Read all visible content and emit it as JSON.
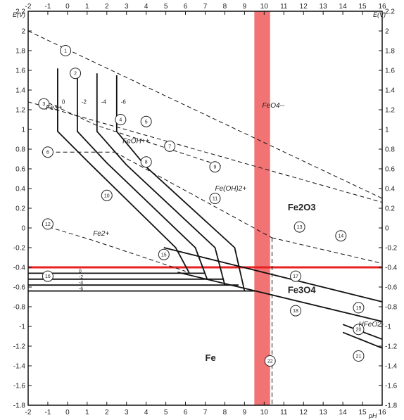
{
  "chart_data": {
    "type": "line",
    "title": "",
    "xlabel": "pH",
    "ylabel": "E (V)",
    "xlim": [
      -2,
      16
    ],
    "ylim": [
      -1.8,
      2.2
    ],
    "x_ticks": [
      "-2",
      "-1",
      "0",
      "1",
      "2",
      "3",
      "4",
      "5",
      "6",
      "7",
      "8",
      "9",
      "10",
      "11",
      "12",
      "13",
      "14",
      "15",
      "16"
    ],
    "y_ticks_left": [
      "-1.8",
      "-1.6",
      "-1.4",
      "-1.2",
      "-1",
      "-0.8",
      "-0.6",
      "-0.4",
      "-0.2",
      "0",
      "0.2",
      "0.4",
      "0.6",
      "0.8",
      "1",
      "1.2",
      "1.4",
      "1.6",
      "1.8",
      "2",
      "2.2"
    ],
    "y_ticks_right": [
      "-1.8",
      "-1.6",
      "-1.4",
      "-1.2",
      "-1",
      "-0.8",
      "-0.6",
      "-0.4",
      "-0.2",
      "0",
      "0.2",
      "0.4",
      "0.6",
      "0.8",
      "1",
      "1.2",
      "1.4",
      "1.6",
      "1.8",
      "2",
      "2.2"
    ],
    "axis_unit_labels": {
      "y_left": "E(V)",
      "y_right": "E(V)",
      "x_bottom": "pH"
    },
    "grid": false,
    "highlights": [
      {
        "orientation": "vertical",
        "x_range": [
          9.5,
          10.3
        ],
        "color": "#f05a5a"
      },
      {
        "orientation": "horizontal",
        "y": -0.4,
        "color": "#e82020"
      }
    ],
    "region_labels": [
      {
        "text": "Fe2O3",
        "x": 11.2,
        "y": 0.18
      },
      {
        "text": "Fe3O4",
        "x": 11.2,
        "y": -0.66
      },
      {
        "text": "Fe",
        "x": 7.0,
        "y": -1.35
      }
    ],
    "species_labels": [
      {
        "text": "Fe3+",
        "x": -1.1,
        "y": 1.2
      },
      {
        "text": "FeOH++",
        "x": 2.8,
        "y": 0.86
      },
      {
        "text": "Fe(OH)2+",
        "x": 7.5,
        "y": 0.38
      },
      {
        "text": "Fe2+",
        "x": 1.3,
        "y": -0.08
      },
      {
        "text": "FeO4--",
        "x": 9.9,
        "y": 1.22
      },
      {
        "text": "HFeO2-",
        "x": 14.8,
        "y": -1.0
      }
    ],
    "concentration_labels": [
      "0",
      "-2",
      "-4",
      "-6"
    ],
    "series": [
      {
        "style": "dashed",
        "x": [
          -2,
          16
        ],
        "y": [
          2.0,
          0.3
        ]
      },
      {
        "style": "dashed",
        "x": [
          -2,
          16
        ],
        "y": [
          1.28,
          0.26
        ]
      },
      {
        "style": "dashed",
        "x": [
          -1.3,
          2.4
        ],
        "y": [
          0.77,
          0.77
        ]
      },
      {
        "style": "dashed",
        "x": [
          2.4,
          10.4
        ],
        "y": [
          0.77,
          -0.1
        ]
      },
      {
        "style": "dashed",
        "x": [
          10.4,
          16
        ],
        "y": [
          -0.1,
          -0.36
        ]
      },
      {
        "style": "dashed",
        "x": [
          -1.3,
          1.2,
          6.0
        ],
        "y": [
          0.03,
          -0.12,
          -0.44
        ]
      },
      {
        "style": "dashed",
        "x": [
          -1.3,
          1.5,
          7.8
        ],
        "y": [
          1.3,
          1.04,
          0.63
        ]
      },
      {
        "style": "dashed",
        "x": [
          10.4,
          10.4
        ],
        "y": [
          -0.1,
          -1.8
        ]
      },
      {
        "style": "solid",
        "x": [
          -2,
          7.0
        ],
        "y": [
          -0.46,
          -0.46
        ]
      },
      {
        "style": "solid",
        "x": [
          -2,
          7.9
        ],
        "y": [
          -0.52,
          -0.52
        ]
      },
      {
        "style": "solid",
        "x": [
          -2,
          8.7
        ],
        "y": [
          -0.58,
          -0.58
        ]
      },
      {
        "style": "solid",
        "x": [
          -2,
          9.6
        ],
        "y": [
          -0.64,
          -0.64
        ]
      },
      {
        "style": "solid",
        "x": [
          -0.5,
          -0.5,
          1.0,
          5.5,
          6.2
        ],
        "y": [
          1.62,
          0.98,
          0.68,
          -0.2,
          -0.46
        ]
      },
      {
        "style": "solid",
        "x": [
          0.5,
          0.5,
          2.0,
          6.5,
          7.1
        ],
        "y": [
          1.6,
          0.98,
          0.66,
          -0.2,
          -0.52
        ]
      },
      {
        "style": "solid",
        "x": [
          1.5,
          1.5,
          3.0,
          7.5,
          8.0
        ],
        "y": [
          1.57,
          0.98,
          0.64,
          -0.2,
          -0.58
        ]
      },
      {
        "style": "solid",
        "x": [
          2.5,
          2.5,
          4.0,
          8.5,
          9.0
        ],
        "y": [
          1.55,
          0.98,
          0.62,
          -0.2,
          -0.64
        ]
      },
      {
        "style": "solid",
        "x": [
          4.9,
          16
        ],
        "y": [
          -0.2,
          -0.75
        ]
      },
      {
        "style": "solid",
        "x": [
          5.6,
          16
        ],
        "y": [
          -0.45,
          -0.95
        ]
      },
      {
        "style": "solid",
        "x": [
          14.0,
          16
        ],
        "y": [
          -0.98,
          -1.13
        ]
      },
      {
        "style": "solid",
        "x": [
          14.0,
          16
        ],
        "y": [
          -1.06,
          -1.22
        ]
      }
    ],
    "circled_markers": [
      {
        "n": "1",
        "x": -0.1,
        "y": 1.8
      },
      {
        "n": "2",
        "x": 0.4,
        "y": 1.57
      },
      {
        "n": "3",
        "x": -1.2,
        "y": 1.26
      },
      {
        "n": "4",
        "x": 2.7,
        "y": 1.1
      },
      {
        "n": "5",
        "x": 4.0,
        "y": 1.08
      },
      {
        "n": "6",
        "x": -1.0,
        "y": 0.77
      },
      {
        "n": "7",
        "x": 5.2,
        "y": 0.83
      },
      {
        "n": "8",
        "x": 4.0,
        "y": 0.67
      },
      {
        "n": "9",
        "x": 7.5,
        "y": 0.62
      },
      {
        "n": "10",
        "x": 2.0,
        "y": 0.33
      },
      {
        "n": "11",
        "x": 7.5,
        "y": 0.3
      },
      {
        "n": "12",
        "x": -1.0,
        "y": 0.04
      },
      {
        "n": "13",
        "x": 11.8,
        "y": 0.01
      },
      {
        "n": "14",
        "x": 13.9,
        "y": -0.08
      },
      {
        "n": "15",
        "x": 4.9,
        "y": -0.27
      },
      {
        "n": "16",
        "x": -1.0,
        "y": -0.49
      },
      {
        "n": "17",
        "x": 11.6,
        "y": -0.49
      },
      {
        "n": "18",
        "x": 11.6,
        "y": -0.84
      },
      {
        "n": "19",
        "x": 14.8,
        "y": -0.81
      },
      {
        "n": "20",
        "x": 14.8,
        "y": -1.03
      },
      {
        "n": "21",
        "x": 14.8,
        "y": -1.3
      },
      {
        "n": "22",
        "x": 10.3,
        "y": -1.35
      }
    ]
  }
}
